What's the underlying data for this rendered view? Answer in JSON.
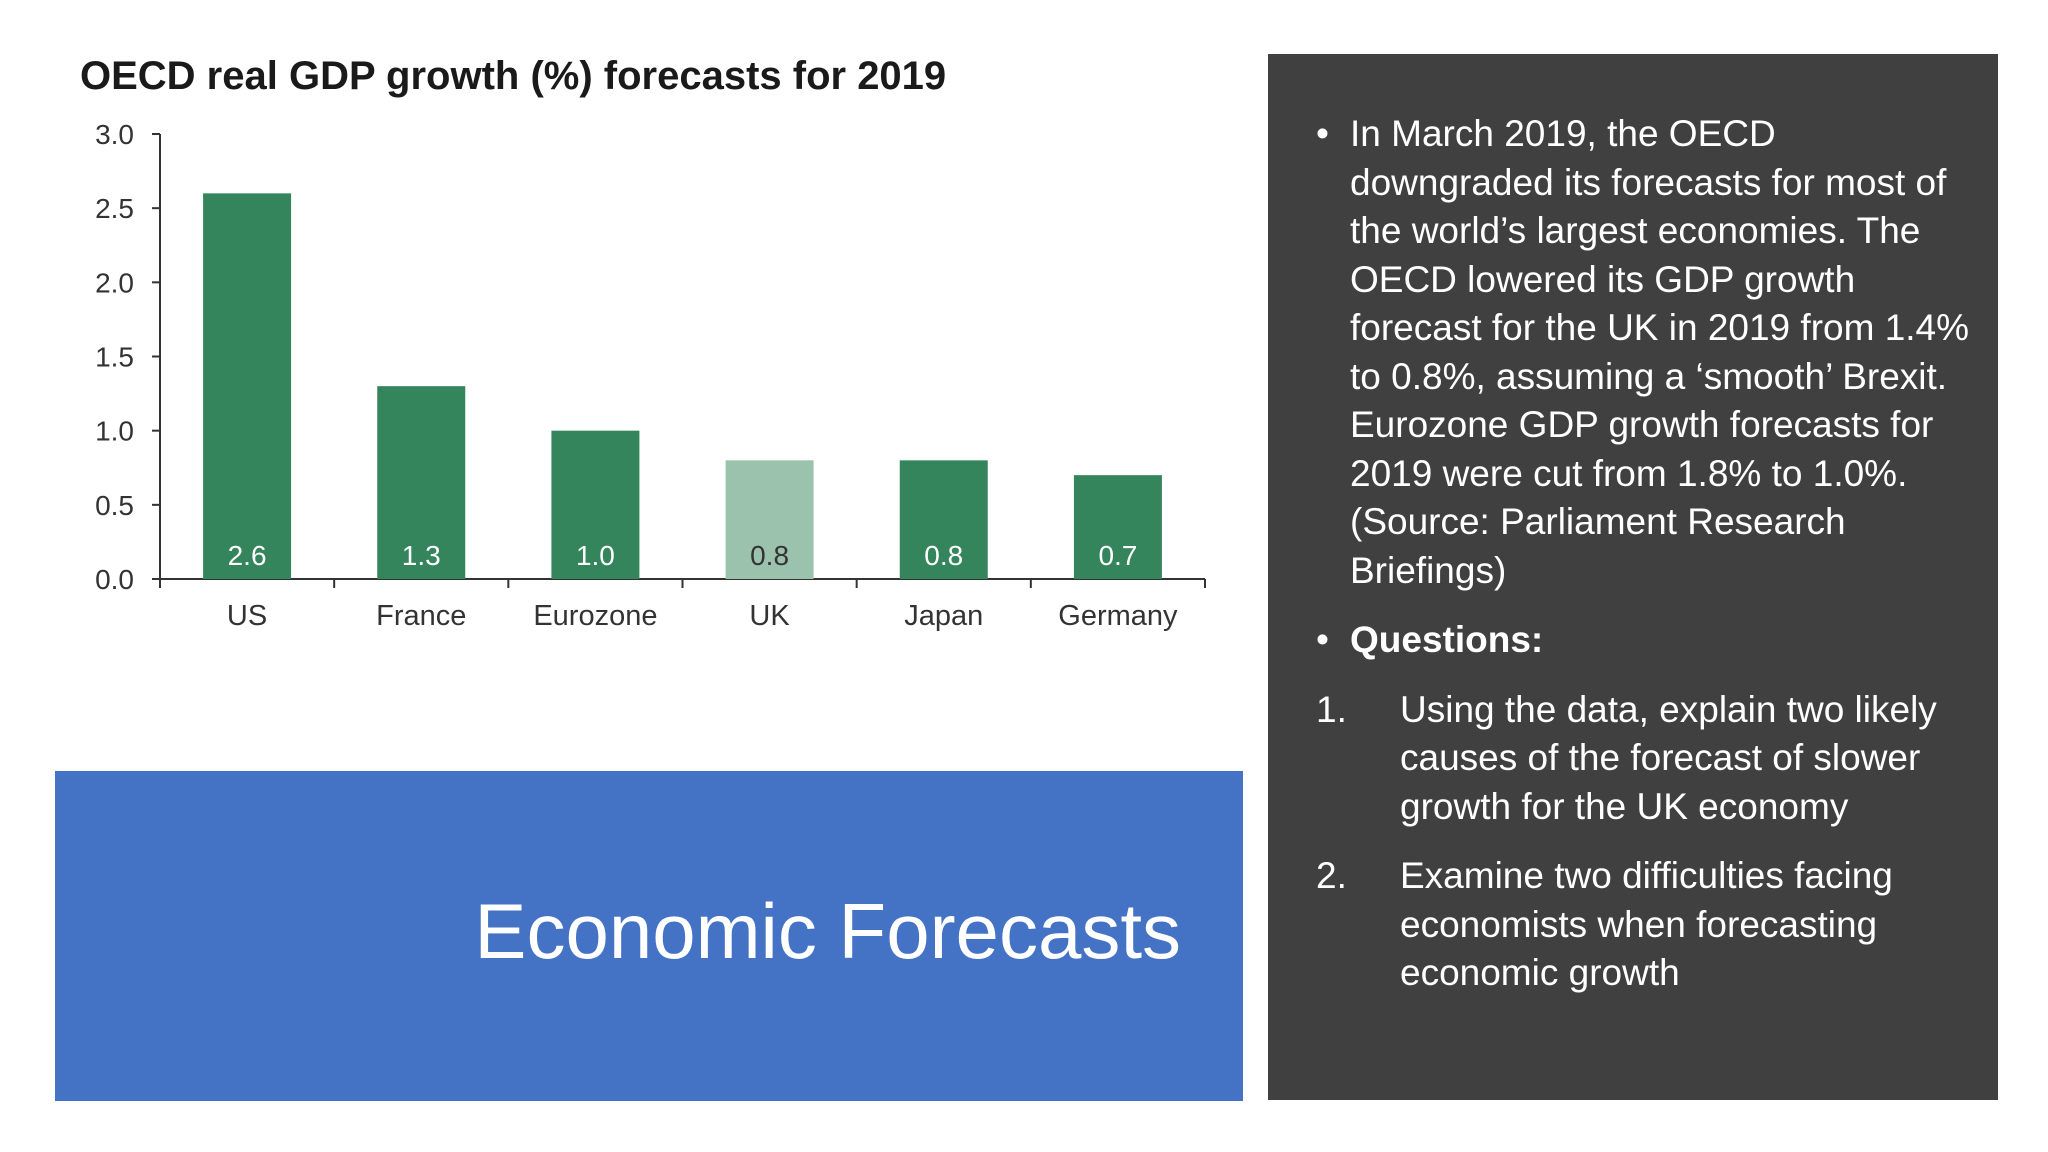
{
  "chart_data": {
    "type": "bar",
    "title": "OECD real GDP growth (%) forecasts for 2019",
    "categories": [
      "US",
      "France",
      "Eurozone",
      "UK",
      "Japan",
      "Germany"
    ],
    "values": [
      2.6,
      1.3,
      1.0,
      0.8,
      0.8,
      0.7
    ],
    "data_labels": [
      "2.6",
      "1.3",
      "1.0",
      "0.8",
      "0.8",
      "0.7"
    ],
    "highlight_index": 3,
    "ylim": [
      0,
      3.0
    ],
    "yticks": [
      "0.0",
      "0.5",
      "1.0",
      "1.5",
      "2.0",
      "2.5",
      "3.0"
    ],
    "xlabel": "",
    "ylabel": "",
    "grid": false,
    "colors": {
      "bar": "#35855c",
      "highlight": "#9bc2ad",
      "axis": "#333333",
      "label_on_bar": "#ffffff",
      "label_on_highlight": "#333333"
    }
  },
  "slide": {
    "title": "Economic Forecasts"
  },
  "panel": {
    "bullets": [
      "In March 2019, the OECD downgraded its forecasts for most of the world’s largest economies. The OECD lowered its GDP growth forecast for the UK in 2019 from 1.4% to 0.8%, assuming a ‘smooth’ Brexit. Eurozone GDP growth forecasts for 2019 were cut from 1.8% to 1.0%. (Source: Parliament Research Briefings)",
      "Questions:"
    ],
    "bullet_symbol": "•",
    "questions": [
      {
        "number": "1.",
        "text": "Using the data, explain two likely causes of the forecast of slower growth for the UK economy"
      },
      {
        "number": "2.",
        "text": "Examine two difficulties facing economists when forecasting economic growth"
      }
    ]
  },
  "colors": {
    "title_box": "#4472c4",
    "panel_background": "#404040",
    "panel_text": "#ffffff"
  }
}
